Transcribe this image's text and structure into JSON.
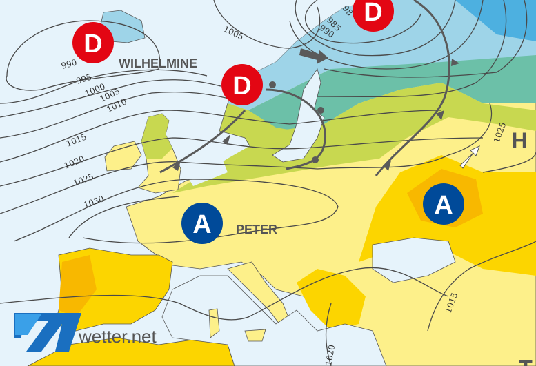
{
  "map": {
    "pressure_systems": [
      {
        "type": "low",
        "label": "D",
        "color": "#e30613"
      },
      {
        "type": "low",
        "label": "D",
        "color": "#e30613"
      },
      {
        "type": "low",
        "label": "D",
        "color": "#e30613"
      },
      {
        "type": "high",
        "label": "A",
        "color": "#004a99"
      },
      {
        "type": "high",
        "label": "A",
        "color": "#004a99"
      },
      {
        "type": "high-minor",
        "label": "H"
      },
      {
        "type": "low-minor",
        "label": "T"
      }
    ],
    "system_names": {
      "low": "WILHELMINE",
      "high": "PETER"
    },
    "isobar_labels": [
      "990",
      "995",
      "1000",
      "1005",
      "1010",
      "1015",
      "1020",
      "1025",
      "1030",
      "1005",
      "985",
      "990",
      "98",
      "1025",
      "1015",
      "1020"
    ],
    "colors": {
      "sea": "#e6f3fb",
      "land_warm": "#fdf08a",
      "land_hot": "#fcd500",
      "land_hotter": "#f8b800",
      "land_mild": "#c8d850",
      "land_cool": "#6cc0a8",
      "land_cold": "#9ed4e8",
      "land_colder": "#4db0e0"
    }
  },
  "logo": {
    "text": "wetter.net"
  }
}
